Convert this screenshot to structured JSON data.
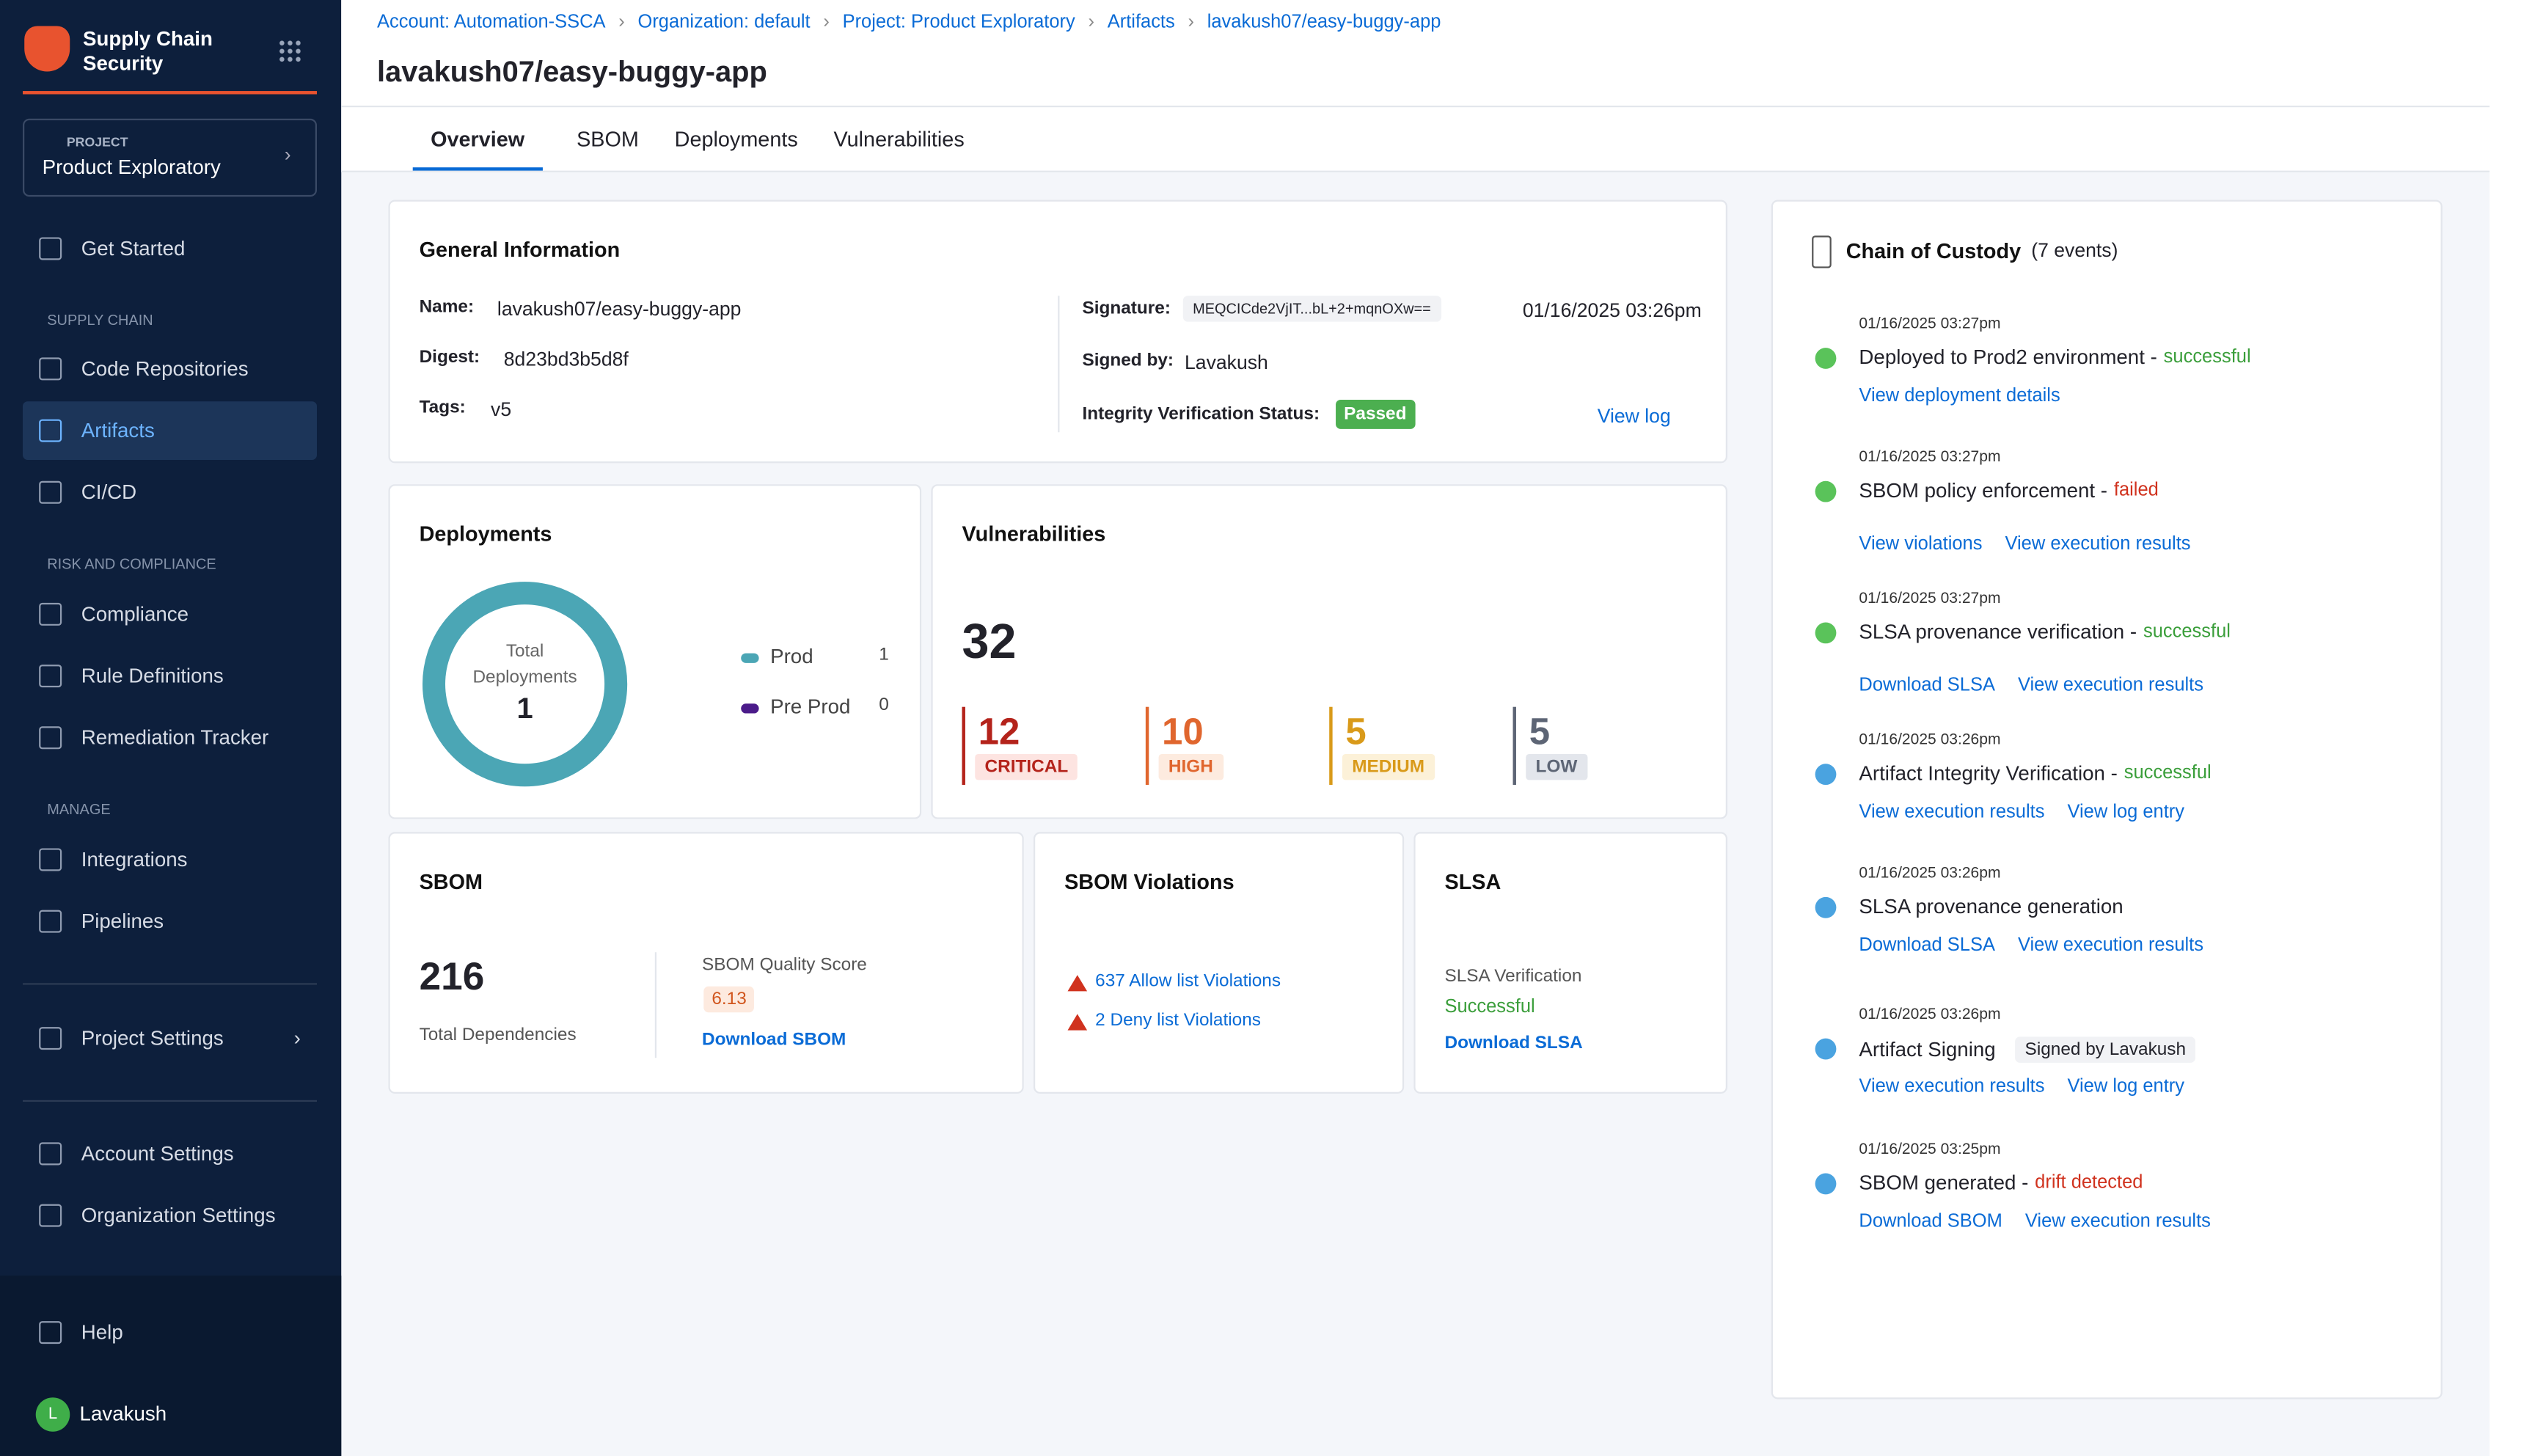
{
  "sidebar": {
    "brand": "Supply Chain Security",
    "project_label": "PROJECT",
    "project": "Product Exploratory",
    "groups": [
      {
        "items": [
          "Get Started"
        ]
      },
      {
        "label": "SUPPLY CHAIN",
        "items": [
          "Code Repositories",
          "Artifacts",
          "CI/CD"
        ]
      },
      {
        "label": "RISK AND COMPLIANCE",
        "items": [
          "Compliance",
          "Rule Definitions",
          "Remediation Tracker"
        ]
      },
      {
        "label": "MANAGE",
        "items": [
          "Integrations",
          "Pipelines"
        ]
      }
    ],
    "project_settings": "Project Settings",
    "account_settings": "Account Settings",
    "organization_settings": "Organization Settings",
    "help": "Help",
    "user": "Lavakush",
    "avatar": "L"
  },
  "header": {
    "breadcrumbs": [
      "Account: Automation-SSCA",
      "Organization: default",
      "Project: Product Exploratory",
      "Artifacts",
      "lavakush07/easy-buggy-app"
    ],
    "title": "lavakush07/easy-buggy-app",
    "tabs": [
      "Overview",
      "SBOM",
      "Deployments",
      "Vulnerabilities"
    ]
  },
  "general": {
    "title": "General Information",
    "name_label": "Name:",
    "name": "lavakush07/easy-buggy-app",
    "digest_label": "Digest:",
    "digest": "8d23bd3b5d8f",
    "tags_label": "Tags:",
    "tags": "v5",
    "signature_label": "Signature:",
    "signature": "MEQCICde2VjIT...bL+2+mqnOXw==",
    "signature_date": "01/16/2025 03:26pm",
    "signed_by_label": "Signed by:",
    "signed_by": "Lavakush",
    "integrity_label": "Integrity Verification Status:",
    "integrity": "Passed",
    "view_log": "View log"
  },
  "deployments": {
    "title": "Deployments",
    "center_label": "Total Deployments",
    "total": 1,
    "legend": [
      {
        "name": "Prod",
        "value": 1,
        "color": "#4ba6b5"
      },
      {
        "name": "Pre Prod",
        "value": 0,
        "color": "#4b1b8a"
      }
    ]
  },
  "vulnerabilities": {
    "title": "Vulnerabilities",
    "total": 32,
    "items": [
      {
        "value": 12,
        "label": "CRITICAL",
        "color": "#b4231b",
        "bg": "#fde4e1"
      },
      {
        "value": 10,
        "label": "HIGH",
        "color": "#e0662e",
        "bg": "#fdebdf"
      },
      {
        "value": 5,
        "label": "MEDIUM",
        "color": "#d99a1a",
        "bg": "#fcf1d8"
      },
      {
        "value": 5,
        "label": "LOW",
        "color": "#5d6575",
        "bg": "#e3e6ec"
      }
    ]
  },
  "sbom": {
    "title": "SBOM",
    "dependencies": 216,
    "dependencies_label": "Total Dependencies",
    "quality_label": "SBOM Quality Score",
    "quality": "6.13",
    "download": "Download SBOM"
  },
  "violations": {
    "title": "SBOM Violations",
    "items": [
      "637 Allow list Violations",
      "2 Deny list Violations"
    ]
  },
  "slsa": {
    "title": "SLSA",
    "label": "SLSA Verification",
    "status": "Successful",
    "download": "Download SLSA"
  },
  "custody": {
    "title": "Chain of Custody",
    "count": "(7 events)",
    "events": [
      {
        "time": "01/16/2025 03:27pm",
        "title": "Deployed to Prod2 environment -",
        "status": "successful",
        "status_color": "#3a9e3a",
        "links": [
          "View deployment details"
        ],
        "icon": "#5ac35a"
      },
      {
        "time": "01/16/2025 03:27pm",
        "title": "SBOM policy enforcement -",
        "status": "failed",
        "status_color": "#d0321e",
        "links": [
          "View violations",
          "View execution results"
        ],
        "icon": "#5ac35a"
      },
      {
        "time": "01/16/2025 03:27pm",
        "title": "SLSA provenance verification -",
        "status": "successful",
        "status_color": "#3a9e3a",
        "links": [
          "Download SLSA",
          "View execution results"
        ],
        "icon": "#5ac35a"
      },
      {
        "time": "01/16/2025 03:26pm",
        "title": "Artifact Integrity Verification -",
        "status": "successful",
        "status_color": "#3a9e3a",
        "links": [
          "View execution results",
          "View log entry"
        ],
        "icon": "#4aa3e0"
      },
      {
        "time": "01/16/2025 03:26pm",
        "title": "SLSA provenance generation",
        "links": [
          "Download SLSA",
          "View execution results"
        ],
        "icon": "#4aa3e0"
      },
      {
        "time": "01/16/2025 03:26pm",
        "title": "Artifact Signing",
        "tag": "Signed by Lavakush",
        "links": [
          "View execution results",
          "View log entry"
        ],
        "icon": "#4aa3e0"
      },
      {
        "time": "01/16/2025 03:25pm",
        "title": "SBOM generated -",
        "status": "drift detected",
        "status_color": "#d0321e",
        "links": [
          "Download SBOM",
          "View execution results"
        ],
        "icon": "#4aa3e0"
      }
    ]
  }
}
